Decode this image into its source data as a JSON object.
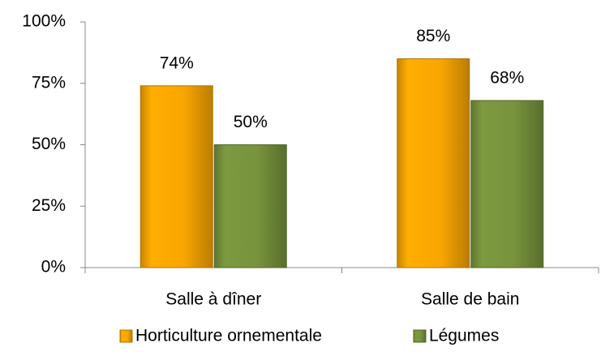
{
  "chart_data": {
    "type": "bar",
    "categories": [
      "Salle à dîner",
      "Salle de bain"
    ],
    "series": [
      {
        "name": "Horticulture ornementale",
        "color": "#f9a602",
        "values": [
          74,
          85
        ],
        "value_labels": [
          "74%",
          "85%"
        ]
      },
      {
        "name": "Légumes",
        "color": "#77933c",
        "values": [
          50,
          68
        ],
        "value_labels": [
          "50%",
          "68%"
        ]
      }
    ],
    "ylim": [
      0,
      100
    ],
    "yticks": [
      {
        "value": 0,
        "label": "0%"
      },
      {
        "value": 25,
        "label": "25%"
      },
      {
        "value": 50,
        "label": "50%"
      },
      {
        "value": 75,
        "label": "75%"
      },
      {
        "value": 100,
        "label": "100%"
      }
    ],
    "grid": false,
    "legend": "bottom"
  }
}
